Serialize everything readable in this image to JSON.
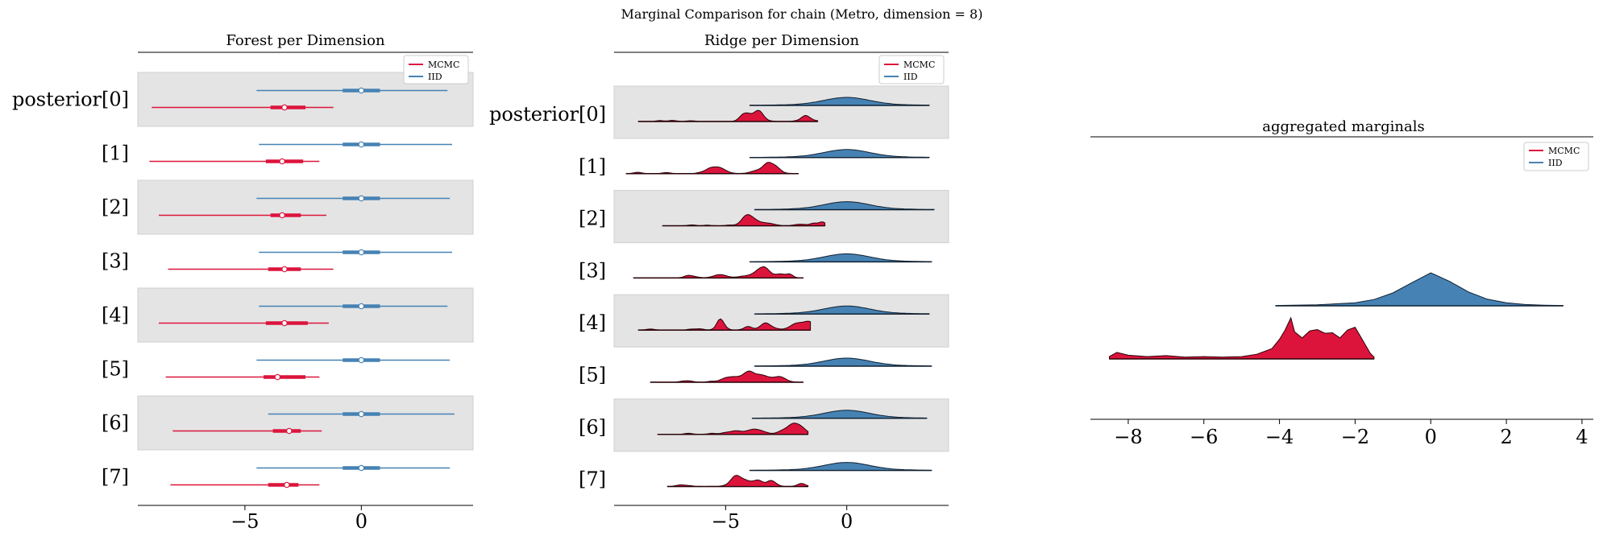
{
  "figure": {
    "suptitle": "Marginal Comparison for chain (Metro, dimension = 8)"
  },
  "colors": {
    "mcmc": "#dc143c",
    "iid": "#4682b4",
    "band": "#e4e4e4",
    "band_edge": "#cfcfcf"
  },
  "chart_data": [
    {
      "type": "forest",
      "title": "Forest per Dimension",
      "legend": {
        "location": "upper-right",
        "entries": [
          "MCMC",
          "IID"
        ]
      },
      "xlim": [
        -9.6,
        4.8
      ],
      "xticks": [
        {
          "value": -5,
          "label": "−5"
        },
        {
          "value": 0,
          "label": "0"
        }
      ],
      "row_labels": [
        "posterior[0]",
        "[1]",
        "[2]",
        "[3]",
        "[4]",
        "[5]",
        "[6]",
        "[7]"
      ],
      "series": [
        {
          "name": "IID",
          "rows": [
            {
              "lo": -4.5,
              "q1": -0.8,
              "mid": 0.0,
              "q3": 0.8,
              "hi": 3.7
            },
            {
              "lo": -4.4,
              "q1": -0.8,
              "mid": 0.0,
              "q3": 0.8,
              "hi": 3.9
            },
            {
              "lo": -4.5,
              "q1": -0.8,
              "mid": 0.0,
              "q3": 0.8,
              "hi": 3.8
            },
            {
              "lo": -4.4,
              "q1": -0.8,
              "mid": 0.0,
              "q3": 0.8,
              "hi": 3.9
            },
            {
              "lo": -4.4,
              "q1": -0.8,
              "mid": 0.0,
              "q3": 0.8,
              "hi": 3.7
            },
            {
              "lo": -4.5,
              "q1": -0.8,
              "mid": 0.0,
              "q3": 0.8,
              "hi": 3.8
            },
            {
              "lo": -4.0,
              "q1": -0.8,
              "mid": 0.0,
              "q3": 0.8,
              "hi": 4.0
            },
            {
              "lo": -4.5,
              "q1": -0.8,
              "mid": 0.0,
              "q3": 0.8,
              "hi": 3.8
            }
          ]
        },
        {
          "name": "MCMC",
          "rows": [
            {
              "lo": -9.0,
              "q1": -3.9,
              "mid": -3.3,
              "q3": -2.4,
              "hi": -1.2
            },
            {
              "lo": -9.1,
              "q1": -4.1,
              "mid": -3.4,
              "q3": -2.5,
              "hi": -1.8
            },
            {
              "lo": -8.7,
              "q1": -3.9,
              "mid": -3.4,
              "q3": -2.6,
              "hi": -1.5
            },
            {
              "lo": -8.3,
              "q1": -4.0,
              "mid": -3.3,
              "q3": -2.6,
              "hi": -1.2
            },
            {
              "lo": -8.7,
              "q1": -4.1,
              "mid": -3.3,
              "q3": -2.3,
              "hi": -1.4
            },
            {
              "lo": -8.4,
              "q1": -4.2,
              "mid": -3.6,
              "q3": -2.4,
              "hi": -1.8
            },
            {
              "lo": -8.1,
              "q1": -3.8,
              "mid": -3.1,
              "q3": -2.6,
              "hi": -1.7
            },
            {
              "lo": -8.2,
              "q1": -4.0,
              "mid": -3.2,
              "q3": -2.7,
              "hi": -1.8
            }
          ]
        }
      ]
    },
    {
      "type": "ridgeline",
      "title": "Ridge per Dimension",
      "legend": {
        "location": "upper-right",
        "entries": [
          "MCMC",
          "IID"
        ]
      },
      "xlim": [
        -9.6,
        4.2
      ],
      "xticks": [
        {
          "value": -5,
          "label": "−5"
        },
        {
          "value": 0,
          "label": "0"
        }
      ],
      "row_labels": [
        "posterior[0]",
        "[1]",
        "[2]",
        "[3]",
        "[4]",
        "[5]",
        "[6]",
        "[7]"
      ],
      "iid_ranges": [
        [
          -4.0,
          3.4
        ],
        [
          -4.0,
          3.4
        ],
        [
          -3.8,
          3.6
        ],
        [
          -4.0,
          3.5
        ],
        [
          -3.8,
          3.4
        ],
        [
          -3.8,
          3.5
        ],
        [
          -3.9,
          3.3
        ],
        [
          -4.0,
          3.5
        ]
      ],
      "mcmc_ranges": [
        [
          -8.6,
          -1.2
        ],
        [
          -9.1,
          -2.0
        ],
        [
          -7.6,
          -0.9
        ],
        [
          -8.8,
          -1.8
        ],
        [
          -8.6,
          -1.5
        ],
        [
          -8.1,
          -1.8
        ],
        [
          -7.8,
          -1.6
        ],
        [
          -7.4,
          -1.6
        ]
      ]
    },
    {
      "type": "density",
      "title": "aggregated marginals",
      "legend": {
        "location": "upper-right",
        "entries": [
          "MCMC",
          "IID"
        ]
      },
      "xlim": [
        -9.0,
        4.3
      ],
      "xticks": [
        {
          "value": -8,
          "label": "−8"
        },
        {
          "value": -6,
          "label": "−6"
        },
        {
          "value": -4,
          "label": "−4"
        },
        {
          "value": -2,
          "label": "−2"
        },
        {
          "value": 0,
          "label": "0"
        },
        {
          "value": 2,
          "label": "2"
        },
        {
          "value": 4,
          "label": "4"
        }
      ],
      "series": [
        {
          "name": "IID",
          "range": [
            -4.1,
            3.5
          ],
          "density_points": [
            [
              -4.1,
              0.01
            ],
            [
              -3.0,
              0.03
            ],
            [
              -2.0,
              0.09
            ],
            [
              -1.5,
              0.19
            ],
            [
              -1.0,
              0.39
            ],
            [
              -0.5,
              0.7
            ],
            [
              0.0,
              1.0
            ],
            [
              0.5,
              0.74
            ],
            [
              1.0,
              0.42
            ],
            [
              1.5,
              0.2
            ],
            [
              2.0,
              0.09
            ],
            [
              2.5,
              0.04
            ],
            [
              3.0,
              0.02
            ],
            [
              3.5,
              0.01
            ]
          ]
        },
        {
          "name": "MCMC",
          "range": [
            -8.5,
            -1.5
          ],
          "density_points": [
            [
              -8.5,
              0.05
            ],
            [
              -8.3,
              0.14
            ],
            [
              -8.0,
              0.08
            ],
            [
              -7.5,
              0.05
            ],
            [
              -7.0,
              0.07
            ],
            [
              -6.5,
              0.04
            ],
            [
              -6.0,
              0.05
            ],
            [
              -5.5,
              0.04
            ],
            [
              -5.0,
              0.05
            ],
            [
              -4.6,
              0.1
            ],
            [
              -4.2,
              0.22
            ],
            [
              -4.0,
              0.42
            ],
            [
              -3.85,
              0.62
            ],
            [
              -3.7,
              0.88
            ],
            [
              -3.6,
              0.58
            ],
            [
              -3.4,
              0.45
            ],
            [
              -3.2,
              0.6
            ],
            [
              -3.0,
              0.63
            ],
            [
              -2.8,
              0.55
            ],
            [
              -2.6,
              0.56
            ],
            [
              -2.4,
              0.45
            ],
            [
              -2.2,
              0.62
            ],
            [
              -2.0,
              0.68
            ],
            [
              -1.8,
              0.4
            ],
            [
              -1.6,
              0.12
            ],
            [
              -1.5,
              0.04
            ]
          ]
        }
      ]
    }
  ]
}
